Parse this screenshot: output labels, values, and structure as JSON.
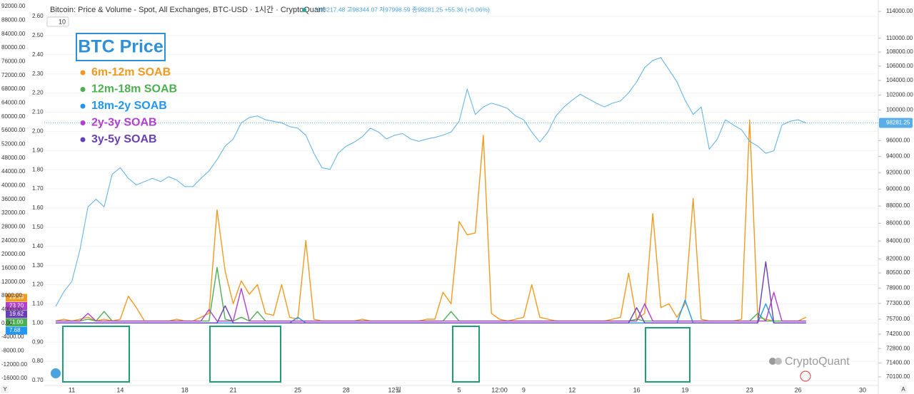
{
  "chart_data": {
    "type": "line",
    "title": "Bitcoin: Price & Volume - Spot, All Exchanges, BTC-USD · 1시간 · CryptoQuant",
    "ohlc": "시98217.48 고98344.07 저97998.59 종98281.25 +55.36 (+0.06%)",
    "interval": "10",
    "watermark": "CryptoQuant",
    "corner_labels": [
      "Y",
      "A"
    ],
    "categories": [
      null,
      null,
      "11",
      null,
      null,
      null,
      null,
      null,
      "14",
      null,
      null,
      null,
      null,
      null,
      null,
      null,
      "18",
      null,
      null,
      null,
      null,
      null,
      "21",
      null,
      null,
      null,
      null,
      null,
      null,
      null,
      "25",
      null,
      null,
      null,
      null,
      null,
      "28",
      null,
      null,
      null,
      null,
      null,
      "12월",
      null,
      null,
      null,
      null,
      null,
      null,
      null,
      "5",
      null,
      null,
      null,
      null,
      "12:00",
      null,
      null,
      "9",
      null,
      null,
      null,
      null,
      null,
      "12",
      null,
      null,
      null,
      null,
      null,
      null,
      null,
      "16",
      null,
      null,
      null,
      null,
      null,
      "19",
      null,
      null,
      null,
      null,
      null,
      null,
      null,
      "23",
      null,
      null,
      null,
      null,
      null,
      "26",
      null,
      null,
      null,
      null,
      null,
      null,
      null,
      "30"
    ],
    "series": [
      {
        "name": "BTC Price",
        "color": "#5aaee8",
        "axis": "y2",
        "values": [
          77000,
          78500,
          79600,
          83000,
          87900,
          88800,
          87900,
          91800,
          92600,
          91300,
          90500,
          90900,
          91300,
          90900,
          91500,
          91100,
          90300,
          90300,
          91300,
          92200,
          93600,
          95300,
          96200,
          98300,
          99000,
          99200,
          98700,
          98500,
          98300,
          97800,
          97600,
          96700,
          94400,
          92600,
          92400,
          94400,
          95300,
          95800,
          96500,
          97600,
          97100,
          96200,
          96700,
          96900,
          96200,
          95900,
          96200,
          96400,
          96700,
          97100,
          98500,
          102800,
          99400,
          100400,
          100900,
          100600,
          100200,
          99200,
          98700,
          97100,
          95800,
          97100,
          99200,
          100400,
          101300,
          102100,
          101500,
          100900,
          100400,
          100900,
          101200,
          102300,
          103800,
          105800,
          106800,
          107200,
          105500,
          103800,
          101300,
          99400,
          100400,
          94900,
          96200,
          98700,
          98000,
          97400,
          95900,
          95300,
          94400,
          94700,
          98000,
          98500,
          98700,
          98281.25,
          null,
          null,
          null,
          null,
          null,
          null,
          null
        ]
      },
      {
        "name": "6m-12m SOAB",
        "color": "#f29a1f",
        "badge": "29.39",
        "values": [
          1.01,
          1.02,
          1.01,
          1.02,
          1.03,
          1.01,
          1.02,
          1.01,
          1.02,
          1.14,
          1.08,
          1.01,
          1.01,
          1.01,
          1.01,
          1.02,
          1.01,
          1.01,
          1.03,
          1.05,
          1.59,
          1.27,
          1.1,
          1.22,
          1.15,
          1.2,
          1.05,
          1.04,
          1.2,
          1.03,
          1.02,
          1.43,
          1.02,
          1.01,
          1.01,
          1.01,
          1.01,
          1.01,
          1.02,
          1.01,
          1.01,
          1.01,
          1.01,
          1.01,
          1.01,
          1.01,
          1.02,
          1.02,
          1.16,
          1.1,
          1.53,
          1.46,
          1.47,
          1.98,
          1.05,
          1.02,
          1.01,
          1.02,
          1.03,
          1.2,
          1.03,
          1.02,
          1.01,
          1.01,
          1.01,
          1.01,
          1.01,
          1.01,
          1.01,
          1.02,
          1.03,
          1.26,
          1.02,
          1.05,
          1.57,
          1.08,
          1.1,
          1.03,
          1.1,
          1.65,
          1.02,
          1.01,
          1.01,
          1.01,
          1.01,
          1.02,
          2.06,
          1.03,
          1.02,
          1.01,
          1.01,
          1.01,
          1.01,
          1.03,
          null,
          null,
          null,
          null,
          null,
          null,
          null
        ]
      },
      {
        "name": "12m-18m SOAB",
        "color": "#4caf50",
        "badge": "11.00",
        "values": [
          1.01,
          1.01,
          1.01,
          1.01,
          1.02,
          1.01,
          1.06,
          1.01,
          1.01,
          1.01,
          1.01,
          1.01,
          1.01,
          1.01,
          1.01,
          1.01,
          1.01,
          1.01,
          1.01,
          1.01,
          1.29,
          1.02,
          1.01,
          1.03,
          1.01,
          1.06,
          1.01,
          1.01,
          1.01,
          1.01,
          1.01,
          1.01,
          1.01,
          1.01,
          1.01,
          1.01,
          1.01,
          1.01,
          1.01,
          1.01,
          1.01,
          1.01,
          1.01,
          1.01,
          1.01,
          1.01,
          1.01,
          1.01,
          1.01,
          1.06,
          1.01,
          1.01,
          1.01,
          1.01,
          1.01,
          1.01,
          1.01,
          1.01,
          1.01,
          1.01,
          1.01,
          1.01,
          1.01,
          1.01,
          1.01,
          1.01,
          1.01,
          1.01,
          1.01,
          1.01,
          1.01,
          1.01,
          1.02,
          1.01,
          1.01,
          1.01,
          1.01,
          1.01,
          1.01,
          1.01,
          1.01,
          1.01,
          1.01,
          1.01,
          1.01,
          1.01,
          1.01,
          1.05,
          1.01,
          1.01,
          1.01,
          1.01,
          1.01,
          1.01,
          null,
          null,
          null,
          null,
          null,
          null,
          null
        ]
      },
      {
        "name": "18m-2y SOAB",
        "color": "#2196f3",
        "badge": "7.68",
        "values": [
          1,
          1,
          1,
          1,
          1,
          1,
          1,
          1,
          1,
          1,
          1,
          1,
          1,
          1,
          1,
          1,
          1,
          1,
          1,
          1,
          1,
          1,
          1,
          1,
          1,
          1,
          1,
          1,
          1,
          1,
          1.03,
          1,
          1,
          1,
          1,
          1,
          1,
          1,
          1,
          1,
          1,
          1,
          1,
          1,
          1,
          1,
          1,
          1,
          1,
          1,
          1,
          1,
          1,
          1,
          1,
          1,
          1,
          1,
          1,
          1,
          1,
          1,
          1,
          1,
          1,
          1,
          1,
          1,
          1,
          1,
          1,
          1,
          1,
          1,
          1,
          1,
          1,
          1,
          1.12,
          1,
          1,
          1,
          1,
          1,
          1,
          1,
          1,
          1,
          1.1,
          1,
          1,
          1,
          1,
          1,
          null,
          null,
          null,
          null,
          null,
          null,
          null
        ]
      },
      {
        "name": "2y-3y SOAB",
        "color": "#b03fd0",
        "badge": "23.20",
        "values": [
          1.01,
          1.01,
          1.01,
          1.01,
          1.05,
          1.01,
          1.01,
          1.01,
          1.01,
          1.01,
          1.01,
          1.01,
          1.01,
          1.01,
          1.01,
          1.01,
          1.01,
          1.01,
          1.01,
          1.07,
          1.01,
          1.01,
          1.01,
          1.18,
          1.01,
          1.01,
          1.01,
          1.01,
          1.01,
          1.01,
          1.01,
          1.01,
          1.01,
          1.01,
          1.01,
          1.01,
          1.01,
          1.01,
          1.01,
          1.01,
          1.01,
          1.01,
          1.01,
          1.01,
          1.01,
          1.01,
          1.01,
          1.01,
          1.01,
          1.01,
          1.01,
          1.01,
          1.01,
          1.01,
          1.01,
          1.01,
          1.01,
          1.01,
          1.01,
          1.01,
          1.01,
          1.01,
          1.01,
          1.01,
          1.01,
          1.01,
          1.01,
          1.01,
          1.01,
          1.01,
          1.01,
          1.01,
          1.01,
          1.1,
          1.01,
          1.01,
          1.01,
          1.01,
          1.01,
          1.01,
          1.01,
          1.01,
          1.01,
          1.01,
          1.01,
          1.01,
          1.01,
          1.01,
          1.01,
          1.16,
          1.01,
          1.01,
          1.01,
          1.01,
          null,
          null,
          null,
          null,
          null,
          null,
          null
        ]
      },
      {
        "name": "3y-5y SOAB",
        "color": "#6a3fb5",
        "badge": "19.62",
        "values": [
          1,
          1,
          1,
          1,
          1,
          1,
          1,
          1,
          1,
          1,
          1,
          1,
          1,
          1,
          1,
          1,
          1,
          1,
          1,
          1,
          1,
          1.09,
          1,
          1,
          1,
          1,
          1,
          1,
          1,
          1,
          1,
          1,
          1,
          1,
          1,
          1,
          1,
          1,
          1,
          1,
          1,
          1,
          1,
          1,
          1,
          1,
          1,
          1,
          1,
          1,
          1,
          1,
          1,
          1,
          1,
          1,
          1,
          1,
          1,
          1,
          1,
          1,
          1,
          1,
          1,
          1,
          1,
          1,
          1,
          1,
          1,
          1,
          1.08,
          1,
          1,
          1,
          1,
          1,
          1,
          1,
          1,
          1,
          1,
          1,
          1,
          1,
          1,
          1,
          1.32,
          1,
          1,
          1,
          1,
          1,
          null,
          null,
          null,
          null,
          null,
          null,
          null
        ]
      }
    ],
    "ylim": [
      0.648,
      2.667
    ],
    "yticks": [
      {
        "value": 2.6,
        "label": "2.60"
      },
      {
        "value": 2.5,
        "label": "2.50"
      },
      {
        "value": 2.4,
        "label": "2.40"
      },
      {
        "value": 2.3,
        "label": "2.30"
      },
      {
        "value": 2.2,
        "label": "2.20"
      },
      {
        "value": 2.1,
        "label": "2.10"
      },
      {
        "value": 2,
        "label": "2.00"
      },
      {
        "value": 1.9,
        "label": "1.90"
      },
      {
        "value": 1.8,
        "label": "1.80"
      },
      {
        "value": 1.7,
        "label": "1.70"
      },
      {
        "value": 1.6,
        "label": "1.60"
      },
      {
        "value": 1.5,
        "label": "1.50"
      },
      {
        "value": 1.4,
        "label": "1.40"
      },
      {
        "value": 1.3,
        "label": "1.30"
      },
      {
        "value": 1.2,
        "label": "1.20"
      },
      {
        "value": 1.1,
        "label": "1.10"
      },
      {
        "value": 1,
        "label": "1.00"
      },
      {
        "value": 0.9,
        "label": "0.90"
      },
      {
        "value": 0.8,
        "label": "0.80"
      },
      {
        "value": 0.7,
        "label": "0.70"
      }
    ],
    "y2lim": [
      68850,
      115200
    ],
    "y2scale": "log",
    "y2ticks": [
      {
        "value": 114000,
        "label": "114000.00"
      },
      {
        "value": 110000,
        "label": "110000.00"
      },
      {
        "value": 108000,
        "label": "108000.00"
      },
      {
        "value": 106000,
        "label": "106000.00"
      },
      {
        "value": 104000,
        "label": "104000.00"
      },
      {
        "value": 102000,
        "label": "102000.00"
      },
      {
        "value": 100000,
        "label": "100000.00"
      },
      {
        "value": 98000,
        "label": "98000.00"
      },
      {
        "value": 96000,
        "label": "96000.00"
      },
      {
        "value": 94000,
        "label": "94000.00"
      },
      {
        "value": 92000,
        "label": "92000.00"
      },
      {
        "value": 90000,
        "label": "90000.00"
      },
      {
        "value": 88000,
        "label": "88000.00"
      },
      {
        "value": 86000,
        "label": "86000.00"
      },
      {
        "value": 84000,
        "label": "84000.00"
      },
      {
        "value": 82000,
        "label": "82000.00"
      },
      {
        "value": 80500,
        "label": "80500.00"
      },
      {
        "value": 78900,
        "label": "78900.00"
      },
      {
        "value": 77300,
        "label": "77300.00"
      },
      {
        "value": 75700,
        "label": "75700.00"
      },
      {
        "value": 74200,
        "label": "74200.00"
      },
      {
        "value": 72800,
        "label": "72800.00"
      },
      {
        "value": 71400,
        "label": "71400.00"
      },
      {
        "value": 70100,
        "label": "70100.00"
      }
    ],
    "y3lim": [
      -19520,
      92830
    ],
    "y3ticks": [
      {
        "value": 92000,
        "label": "92000.00"
      },
      {
        "value": 88000,
        "label": "88000.00"
      },
      {
        "value": 84000,
        "label": "84000.00"
      },
      {
        "value": 80000,
        "label": "80000.00"
      },
      {
        "value": 76000,
        "label": "76000.00"
      },
      {
        "value": 72000,
        "label": "72000.00"
      },
      {
        "value": 68000,
        "label": "68000.00"
      },
      {
        "value": 64000,
        "label": "64000.00"
      },
      {
        "value": 60000,
        "label": "60000.00"
      },
      {
        "value": 56000,
        "label": "56000.00"
      },
      {
        "value": 52000,
        "label": "52000.00"
      },
      {
        "value": 48000,
        "label": "48000.00"
      },
      {
        "value": 44000,
        "label": "44000.00"
      },
      {
        "value": 40000,
        "label": "40000.00"
      },
      {
        "value": 36000,
        "label": "36000.00"
      },
      {
        "value": 32000,
        "label": "32000.00"
      },
      {
        "value": 28000,
        "label": "28000.00"
      },
      {
        "value": 24000,
        "label": "24000.00"
      },
      {
        "value": 20000,
        "label": "20000.00"
      },
      {
        "value": 16000,
        "label": "16000.00"
      },
      {
        "value": 12000,
        "label": "12000.00"
      },
      {
        "value": 8000,
        "label": "8000.00"
      },
      {
        "value": 4000,
        "label": "4000.00"
      },
      {
        "value": 0,
        "label": "0.00"
      },
      {
        "value": -4000,
        "label": "-4000.00"
      },
      {
        "value": -8000,
        "label": "-8000.00"
      },
      {
        "value": -12000,
        "label": "-12000.00"
      },
      {
        "value": -16000,
        "label": "-16000.00"
      }
    ],
    "grid": true
  }
}
